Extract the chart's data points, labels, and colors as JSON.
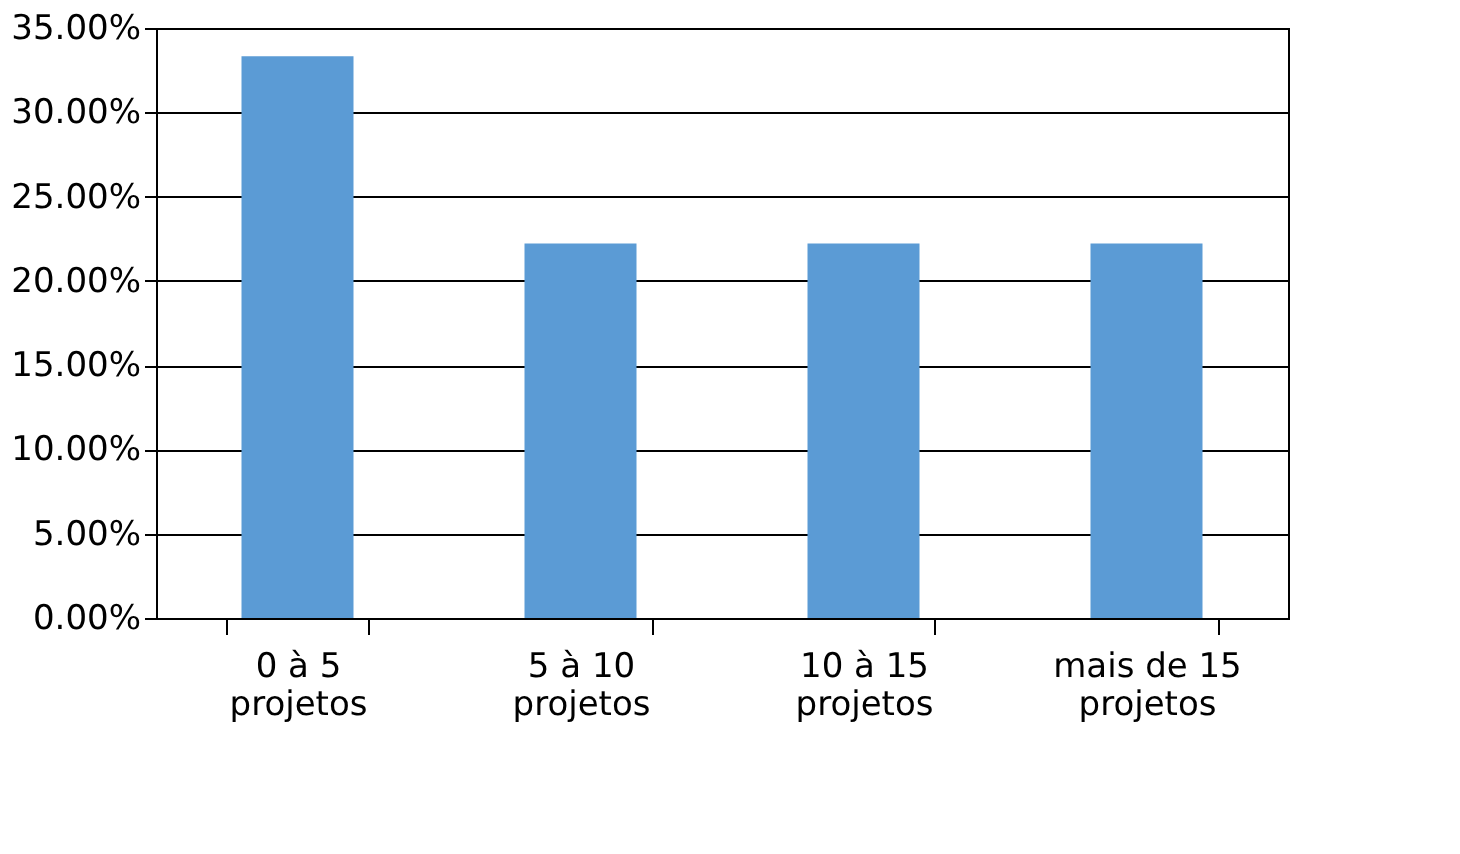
{
  "chart_data": {
    "type": "bar",
    "categories": [
      "0 à 5 projetos",
      "5 à 10 projetos",
      "10 à 15 projetos",
      "mais de 15 projetos"
    ],
    "values": [
      33.33,
      22.22,
      22.22,
      22.22
    ],
    "color": "#5b9bd5",
    "ylim": [
      0,
      35
    ],
    "yticks": [
      {
        "value": 0,
        "label": "0.00%"
      },
      {
        "value": 5,
        "label": "5.00%"
      },
      {
        "value": 10,
        "label": "10.00%"
      },
      {
        "value": 15,
        "label": "15.00%"
      },
      {
        "value": 20,
        "label": "20.00%"
      },
      {
        "value": 25,
        "label": "25.00%"
      },
      {
        "value": 30,
        "label": "30.00%"
      },
      {
        "value": 35,
        "label": "35.00%"
      }
    ],
    "grid": "y"
  }
}
